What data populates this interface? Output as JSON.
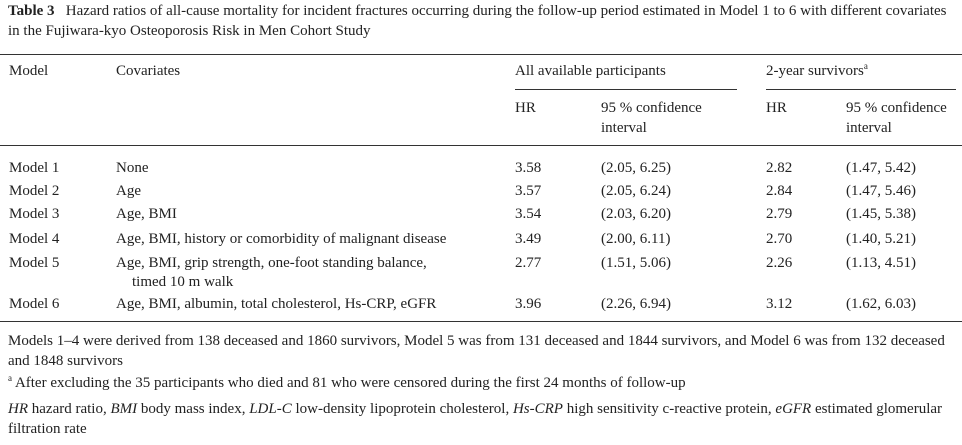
{
  "table": {
    "label": "Table 3",
    "caption": "Hazard ratios of all-cause mortality for incident fractures occurring during the follow-up period estimated in Model 1 to 6 with different covariates in the Fujiwara-kyo Osteoporosis Risk in Men Cohort Study",
    "columns": {
      "model": "Model",
      "covariates": "Covariates"
    },
    "group1": {
      "title": "All available participants",
      "hr": "HR",
      "ci": "95 % confidence interval"
    },
    "group2": {
      "title": "2-year survivors",
      "note": "a",
      "hr": "HR",
      "ci": "95 % confidence interval"
    },
    "rows": [
      {
        "model": "Model 1",
        "covariates": [
          "None"
        ],
        "hr1": "3.58",
        "ci1": "(2.05, 6.25)",
        "hr2": "2.82",
        "ci2": "(1.47, 5.42)"
      },
      {
        "model": "Model 2",
        "covariates": [
          "Age"
        ],
        "hr1": "3.57",
        "ci1": "(2.05, 6.24)",
        "hr2": "2.84",
        "ci2": "(1.47, 5.46)"
      },
      {
        "model": "Model 3",
        "covariates": [
          "Age, BMI"
        ],
        "hr1": "3.54",
        "ci1": "(2.03, 6.20)",
        "hr2": "2.79",
        "ci2": "(1.45, 5.38)"
      },
      {
        "model": "Model 4",
        "covariates": [
          "Age, BMI, history or comorbidity of malignant disease"
        ],
        "hr1": "3.49",
        "ci1": "(2.00, 6.11)",
        "hr2": "2.70",
        "ci2": "(1.40, 5.21)"
      },
      {
        "model": "Model 5",
        "covariates": [
          "Age, BMI, grip strength, one-foot standing balance,",
          "timed 10 m walk"
        ],
        "hr1": "2.77",
        "ci1": "(1.51, 5.06)",
        "hr2": "2.26",
        "ci2": "(1.13, 4.51)"
      },
      {
        "model": "Model 6",
        "covariates": [
          "Age, BMI, albumin, total cholesterol, Hs-CRP, eGFR"
        ],
        "hr1": "3.96",
        "ci1": "(2.26, 6.94)",
        "hr2": "3.12",
        "ci2": "(1.62, 6.03)"
      }
    ],
    "footnotes": {
      "models": "Models 1–4 were derived from 138 deceased and 1860 survivors, Model 5 was from 131 deceased and 1844 survivors, and Model 6 was from 132 deceased and 1848 survivors",
      "note": {
        "marker": "a",
        "text": "After excluding the 35 participants who died and 81 who were censored during the first 24 months of follow-up"
      },
      "abbreviations": [
        {
          "term": "HR",
          "definition": "hazard ratio,"
        },
        {
          "term": "BMI",
          "definition": "body mass index,"
        },
        {
          "term": "LDL-C",
          "definition": "low-density lipoprotein cholesterol,"
        },
        {
          "term": "Hs-CRP",
          "definition": "high sensitivity c-reactive protein,"
        },
        {
          "term": "eGFR",
          "definition": "estimated glomerular filtration rate"
        }
      ]
    }
  }
}
